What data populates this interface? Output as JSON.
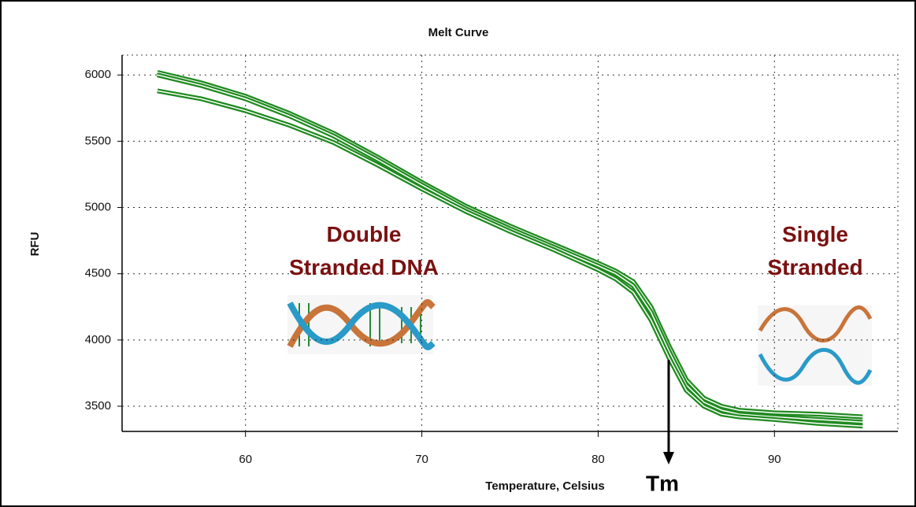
{
  "chart_data": {
    "type": "line",
    "title": "Melt Curve",
    "x_label": "Temperature, Celsius",
    "y_label": "RFU",
    "x": [
      55,
      57.5,
      60,
      62.5,
      65,
      67.5,
      70,
      72.5,
      75,
      77.5,
      80,
      81,
      82,
      83,
      84,
      85,
      86,
      87,
      88,
      90,
      92.5,
      95
    ],
    "series": [
      {
        "color": "#1f8a1f",
        "values": [
          6020,
          5940,
          5840,
          5710,
          5560,
          5380,
          5190,
          5010,
          4860,
          4720,
          4580,
          4520,
          4440,
          4250,
          3960,
          3700,
          3560,
          3500,
          3470,
          3450,
          3440,
          3420
        ]
      },
      {
        "color": "#1f8a1f",
        "values": [
          6000,
          5920,
          5820,
          5690,
          5540,
          5360,
          5170,
          4990,
          4840,
          4700,
          4560,
          4500,
          4410,
          4210,
          3920,
          3660,
          3530,
          3470,
          3440,
          3420,
          3400,
          3380
        ]
      },
      {
        "color": "#1f8a1f",
        "values": [
          5880,
          5820,
          5730,
          5620,
          5490,
          5320,
          5140,
          4970,
          4820,
          4680,
          4530,
          4460,
          4360,
          4150,
          3870,
          3620,
          3500,
          3440,
          3420,
          3400,
          3370,
          3350
        ]
      }
    ],
    "xlim": [
      53,
      97
    ],
    "ylim": [
      3310,
      6150
    ],
    "xticks": [
      60,
      70,
      80,
      90
    ],
    "yticks": [
      3500,
      4000,
      4500,
      5000,
      5500,
      6000
    ],
    "grid": true,
    "annotations": [
      {
        "text": "Double Stranded DNA"
      },
      {
        "text": "Single Stranded"
      },
      {
        "text": "Tm",
        "x": 84,
        "y": 3850
      }
    ]
  }
}
